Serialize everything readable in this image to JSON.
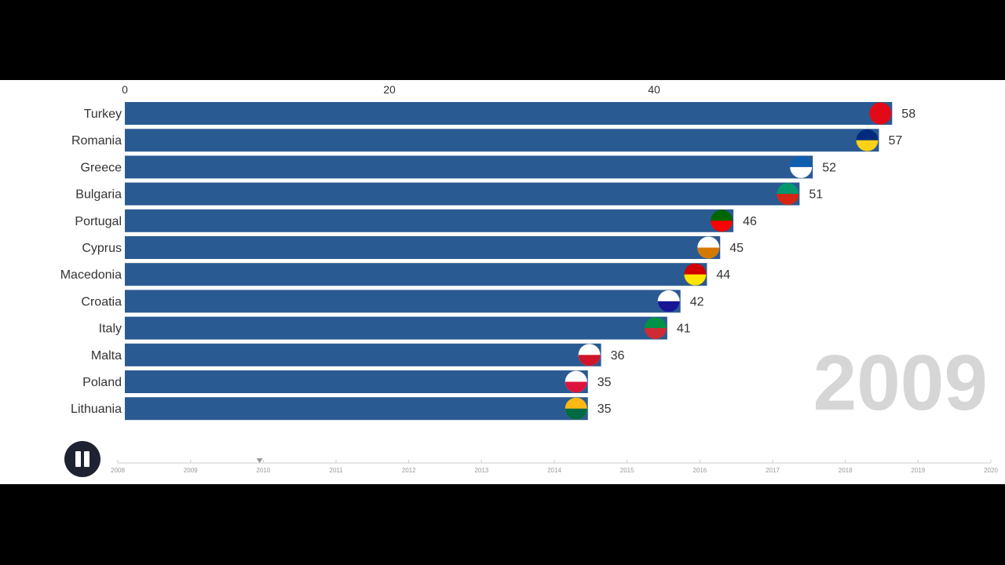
{
  "chart_data": {
    "type": "bar",
    "title": "",
    "xlabel": "",
    "ylabel": "",
    "xlim": [
      0,
      66
    ],
    "x_ticks": [
      "0",
      "20",
      "40"
    ],
    "x_tick_values": [
      0,
      20,
      40
    ],
    "categories": [
      "Turkey",
      "Romania",
      "Greece",
      "Bulgaria",
      "Portugal",
      "Cyprus",
      "Macedonia",
      "Croatia",
      "Italy",
      "Malta",
      "Poland",
      "Lithuania"
    ],
    "values": [
      58,
      57,
      52,
      51,
      46,
      45,
      44,
      42,
      41,
      36,
      35,
      35
    ],
    "bar_color": "#2a5a92",
    "flags": [
      [
        "#e30a17",
        "#e30a17"
      ],
      [
        "#002b7f",
        "#fcd116"
      ],
      [
        "#0d5eaf",
        "#ffffff"
      ],
      [
        "#00966e",
        "#d62612"
      ],
      [
        "#006600",
        "#ff0000"
      ],
      [
        "#ffffff",
        "#d57800"
      ],
      [
        "#d20000",
        "#ffe600"
      ],
      [
        "#ffffff",
        "#171796"
      ],
      [
        "#009246",
        "#ce2b37"
      ],
      [
        "#ffffff",
        "#cf142b"
      ],
      [
        "#ffffff",
        "#dc143c"
      ],
      [
        "#fdb913",
        "#006a44"
      ]
    ],
    "current_year": "2009",
    "timeline_years": [
      "2008",
      "2009",
      "2010",
      "2011",
      "2012",
      "2013",
      "2014",
      "2015",
      "2016",
      "2017",
      "2018",
      "2019",
      "2020"
    ],
    "timeline_position": 2009.95
  },
  "controls": {
    "pause": "pause"
  }
}
